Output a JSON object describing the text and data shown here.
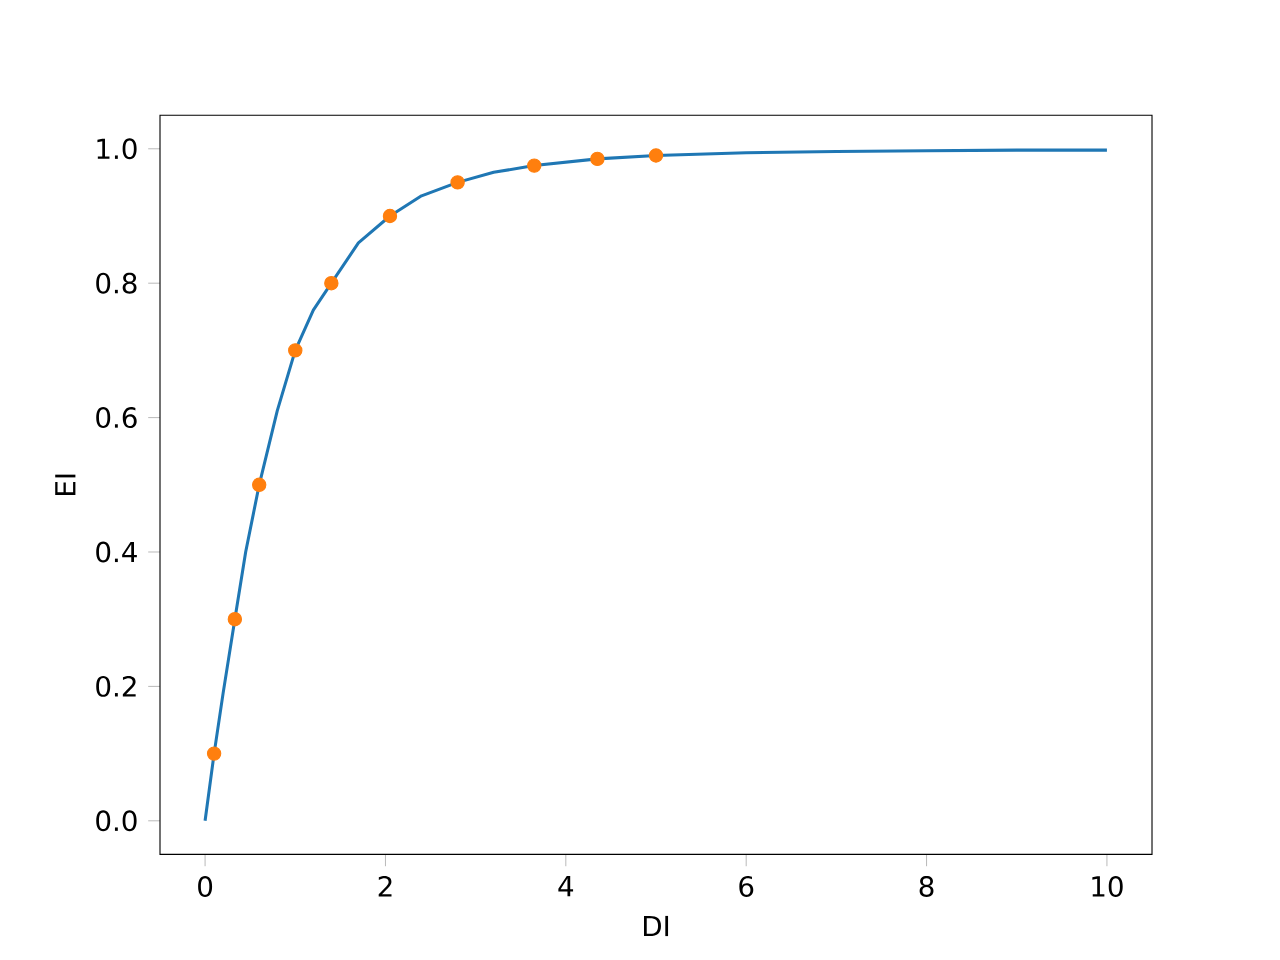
{
  "chart_data": {
    "type": "line",
    "xlabel": "DI",
    "ylabel": "EI",
    "xlim": [
      -0.5,
      10.5
    ],
    "ylim": [
      -0.05,
      1.05
    ],
    "xticks": [
      0,
      2,
      4,
      6,
      8,
      10
    ],
    "yticks": [
      {
        "value": 0,
        "label": "0.0"
      },
      {
        "value": 0.2,
        "label": "0.2"
      },
      {
        "value": 0.4,
        "label": "0.4"
      },
      {
        "value": 0.6,
        "label": "0.6"
      },
      {
        "value": 0.8,
        "label": "0.8"
      },
      {
        "value": 1,
        "label": "1.0"
      }
    ],
    "grid": false,
    "series": [
      {
        "color": "#1f77b4",
        "marker": "none",
        "x": [
          0,
          0.1,
          0.2,
          0.33,
          0.45,
          0.6,
          0.8,
          1.0,
          1.2,
          1.4,
          1.7,
          2.05,
          2.4,
          2.8,
          3.2,
          3.65,
          4.35,
          5,
          6,
          7,
          8,
          9,
          10
        ],
        "values": [
          0,
          0.1,
          0.19,
          0.3,
          0.4,
          0.5,
          0.61,
          0.7,
          0.76,
          0.8,
          0.86,
          0.9,
          0.93,
          0.95,
          0.965,
          0.975,
          0.985,
          0.99,
          0.994,
          0.996,
          0.997,
          0.998,
          0.998
        ]
      },
      {
        "type": "scatter",
        "color": "#ff7f0e",
        "marker": "circle",
        "x": [
          0.1,
          0.33,
          0.6,
          1.0,
          1.4,
          2.05,
          2.8,
          3.65,
          4.35,
          5.0
        ],
        "values": [
          0.1,
          0.3,
          0.5,
          0.7,
          0.8,
          0.9,
          0.95,
          0.975,
          0.985,
          0.99
        ]
      }
    ]
  }
}
